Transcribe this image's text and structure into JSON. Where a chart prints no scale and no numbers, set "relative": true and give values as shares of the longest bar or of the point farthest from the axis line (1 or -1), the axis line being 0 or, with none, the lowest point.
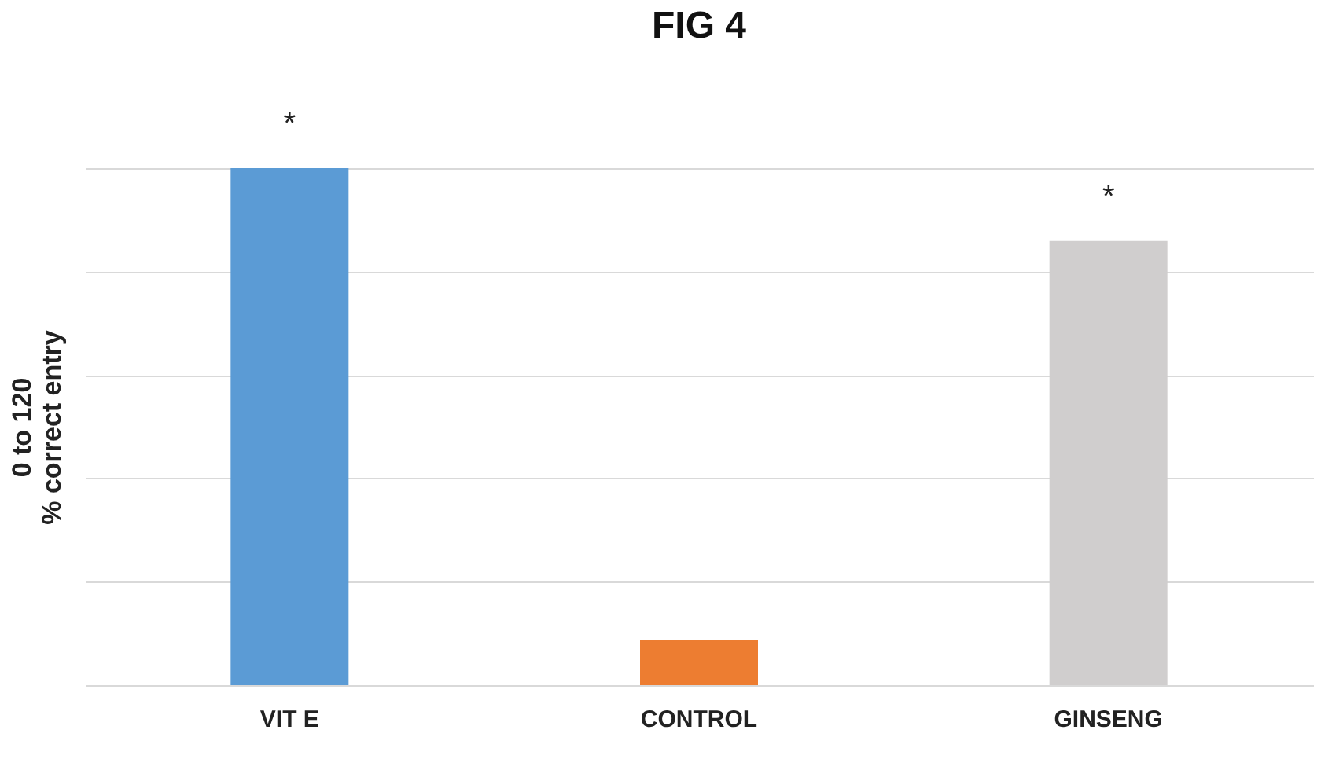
{
  "chart_data": {
    "type": "bar",
    "title": "FIG 4",
    "ylabel": "0   to   120\n% correct entry",
    "categories": [
      "VIT E",
      "CONTROL",
      "GINSENG"
    ],
    "values": [
      1,
      0.087,
      0.859
    ],
    "colors": [
      "#5b9bd5",
      "#ed7d31",
      "#d0cece"
    ],
    "relative": true,
    "grid": "y",
    "annotations": [
      {
        "text": "*",
        "x": "VIT E",
        "y": 1
      },
      {
        "text": "*",
        "x": "GINSENG",
        "y": 0.859
      }
    ]
  }
}
